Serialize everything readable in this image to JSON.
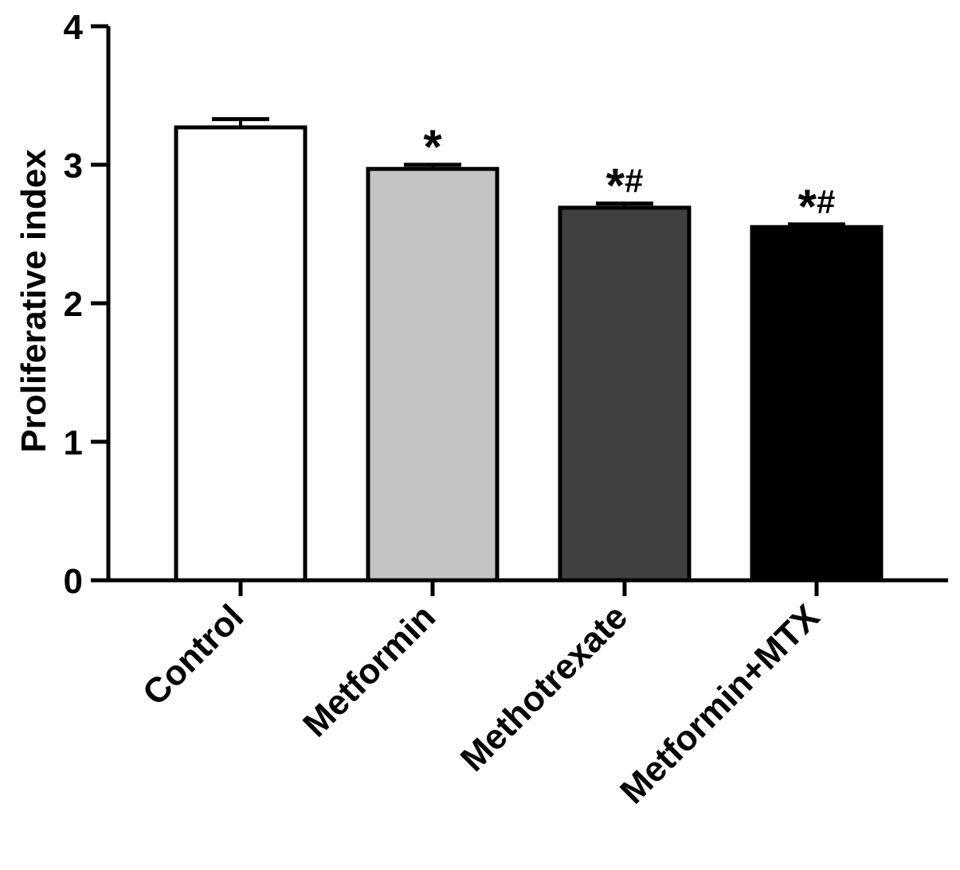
{
  "chart_data": {
    "type": "bar",
    "title": "",
    "xlabel": "",
    "ylabel": "Proliferative index",
    "ylim": [
      0,
      4
    ],
    "yticks": [
      "0",
      "1",
      "2",
      "3",
      "4"
    ],
    "categories": [
      "Control",
      "Metformin",
      "Methotrexate",
      "Metformin+MTX"
    ],
    "values": [
      3.27,
      2.97,
      2.69,
      2.55
    ],
    "errors": [
      0.06,
      0.03,
      0.03,
      0.02
    ],
    "annotations": [
      "",
      "*",
      "*#",
      "*#"
    ],
    "bar_colors": [
      "#ffffff",
      "#c4c4c4",
      "#404040",
      "#000000"
    ],
    "grid": false,
    "legend": "none"
  }
}
